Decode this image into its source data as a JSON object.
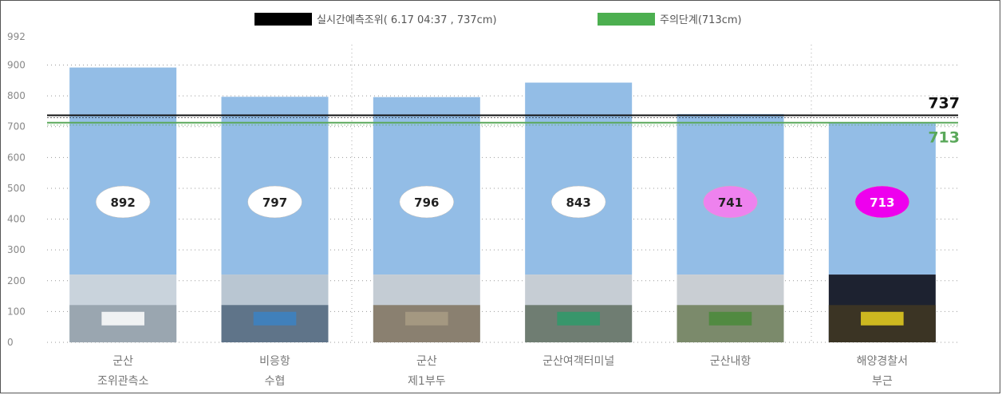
{
  "chart_data": {
    "type": "bar",
    "categories": [
      [
        "군산",
        "조위관측소"
      ],
      [
        "비응항",
        "수협"
      ],
      [
        "군산",
        "제1부두"
      ],
      [
        "군산여객터미널"
      ],
      [
        "군산내항"
      ],
      [
        "해양경찰서",
        "부근"
      ]
    ],
    "values": [
      892,
      797,
      796,
      843,
      741,
      713
    ],
    "photo_base": 220,
    "ylim": [
      0,
      992
    ],
    "yticks": [
      0,
      100,
      200,
      300,
      400,
      500,
      600,
      700,
      800,
      900,
      992
    ],
    "grid": true,
    "legend": {
      "position": "top",
      "entries": [
        {
          "label": "실시간예측조위( 6.17  04:37 , 737cm)",
          "color": "#000000"
        },
        {
          "label": "주의단계(713cm)",
          "color": "#4caf50"
        }
      ]
    },
    "reference_lines": [
      {
        "value": 737,
        "label": "737",
        "color": "#111111"
      },
      {
        "value": 713,
        "label": "713",
        "color": "#5aa85a"
      }
    ],
    "bubble_colors": [
      "#ffffff",
      "#ffffff",
      "#ffffff",
      "#ffffff",
      "#ee82ee",
      "#ee00ee"
    ],
    "bar_color": "#93bde6"
  },
  "photos": [
    {
      "name": "gunsan-tide-station-photo",
      "sky": "#c9d3dc",
      "ground": "#9aa6b0",
      "accent": "#ffffff"
    },
    {
      "name": "bieung-port-photo",
      "sky": "#b9c6d2",
      "ground": "#5f7489",
      "accent": "#3b82c4"
    },
    {
      "name": "gunsan-pier1-photo",
      "sky": "#c4ccd4",
      "ground": "#8a8070",
      "accent": "#a89c84"
    },
    {
      "name": "gunsan-ferry-terminal-photo",
      "sky": "#c6cdd4",
      "ground": "#6f7d72",
      "accent": "#2f9a6a"
    },
    {
      "name": "gunsan-inner-port-photo",
      "sky": "#c9ced3",
      "ground": "#7b8a6b",
      "accent": "#4a8a3a"
    },
    {
      "name": "coast-guard-area-photo",
      "sky": "#1d2230",
      "ground": "#3b3424",
      "accent": "#e8d020"
    }
  ]
}
